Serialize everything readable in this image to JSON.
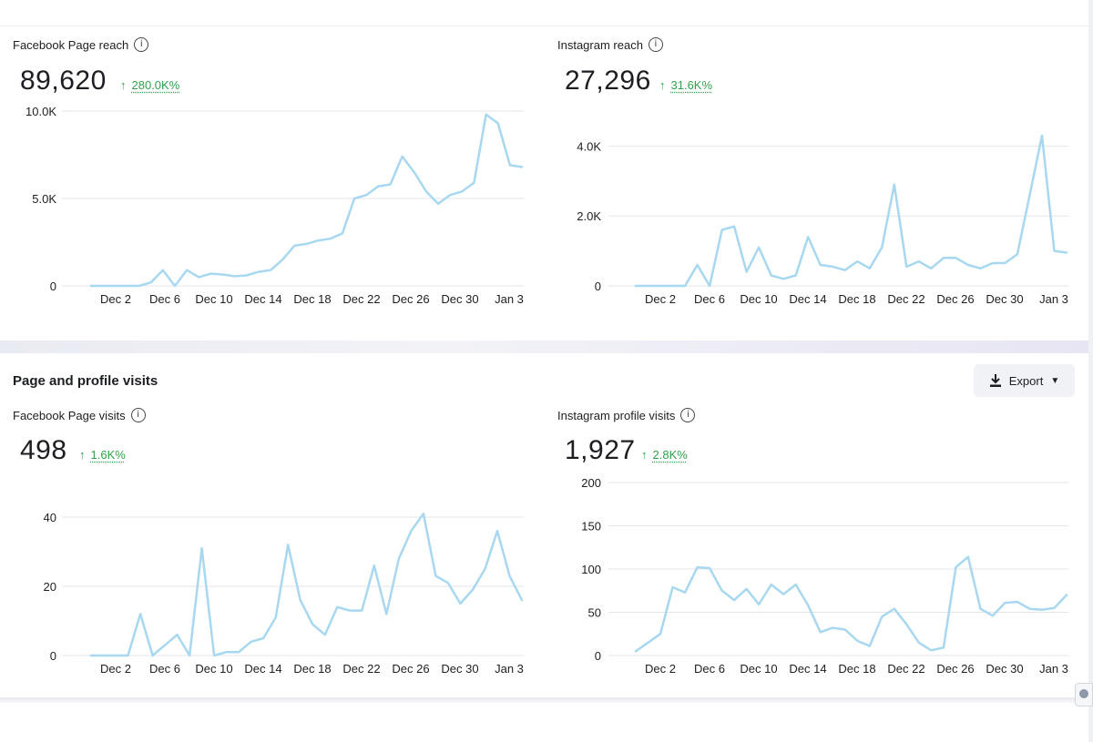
{
  "sections": {
    "reach": {
      "facebook": {
        "title": "Facebook Page reach",
        "total": "89,620",
        "delta": "280.0K%",
        "chart_data": {
          "type": "line",
          "color": "#a8d8f0",
          "x_ticks": [
            "Dec 2",
            "Dec 6",
            "Dec 10",
            "Dec 14",
            "Dec 18",
            "Dec 22",
            "Dec 26",
            "Dec 30",
            "Jan 3"
          ],
          "y_ticks": [
            "0",
            "5.0K",
            "10.0K"
          ],
          "ylim": [
            0,
            10000
          ],
          "values": [
            0,
            0,
            0,
            0,
            0,
            200,
            900,
            0,
            900,
            500,
            700,
            650,
            550,
            600,
            800,
            900,
            1500,
            2300,
            2400,
            2600,
            2700,
            3000,
            5000,
            5200,
            5700,
            5800,
            7400,
            6500,
            5400,
            4700,
            5200,
            5400,
            5900,
            9800,
            9300,
            6900,
            6800
          ]
        }
      },
      "instagram": {
        "title": "Instagram reach",
        "total": "27,296",
        "delta": "31.6K%",
        "chart_data": {
          "type": "line",
          "color": "#a8d8f0",
          "x_ticks": [
            "Dec 2",
            "Dec 6",
            "Dec 10",
            "Dec 14",
            "Dec 18",
            "Dec 22",
            "Dec 26",
            "Dec 30",
            "Jan 3"
          ],
          "y_ticks": [
            "0",
            "2.0K",
            "4.0K"
          ],
          "ylim": [
            0,
            5000
          ],
          "values": [
            0,
            0,
            0,
            0,
            0,
            600,
            0,
            1600,
            1700,
            400,
            1100,
            300,
            200,
            300,
            1400,
            600,
            550,
            450,
            700,
            500,
            1100,
            2900,
            550,
            700,
            500,
            800,
            800,
            600,
            500,
            650,
            650,
            900,
            2600,
            4300,
            1000,
            950
          ]
        }
      }
    },
    "visits": {
      "section_title": "Page and profile visits",
      "export_label": "Export",
      "facebook": {
        "title": "Facebook Page visits",
        "total": "498",
        "delta": "1.6K%",
        "chart_data": {
          "type": "line",
          "color": "#a8d8f0",
          "x_ticks": [
            "Dec 2",
            "Dec 6",
            "Dec 10",
            "Dec 14",
            "Dec 18",
            "Dec 22",
            "Dec 26",
            "Dec 30",
            "Jan 3"
          ],
          "y_ticks": [
            "0",
            "20",
            "40"
          ],
          "ylim": [
            0,
            40
          ],
          "values": [
            0,
            0,
            0,
            0,
            12,
            0,
            3,
            6,
            0,
            31,
            0,
            1,
            1,
            4,
            5,
            11,
            32,
            16,
            9,
            6,
            14,
            13,
            13,
            26,
            12,
            28,
            36,
            41,
            23,
            21,
            15,
            19,
            25,
            36,
            23,
            16
          ]
        }
      },
      "instagram": {
        "title": "Instagram profile visits",
        "total": "1,927",
        "delta": "2.8K%",
        "chart_data": {
          "type": "line",
          "color": "#a8d8f0",
          "x_ticks": [
            "Dec 2",
            "Dec 6",
            "Dec 10",
            "Dec 14",
            "Dec 18",
            "Dec 22",
            "Dec 26",
            "Dec 30",
            "Jan 3"
          ],
          "y_ticks": [
            "0",
            "50",
            "100",
            "150",
            "200"
          ],
          "ylim": [
            0,
            200
          ],
          "values": [
            5,
            15,
            25,
            79,
            73,
            102,
            101,
            75,
            64,
            77,
            59,
            82,
            71,
            82,
            58,
            27,
            32,
            30,
            17,
            11,
            45,
            54,
            36,
            15,
            6,
            9,
            102,
            114,
            54,
            46,
            61,
            62,
            54,
            53,
            55,
            70
          ]
        }
      }
    }
  }
}
